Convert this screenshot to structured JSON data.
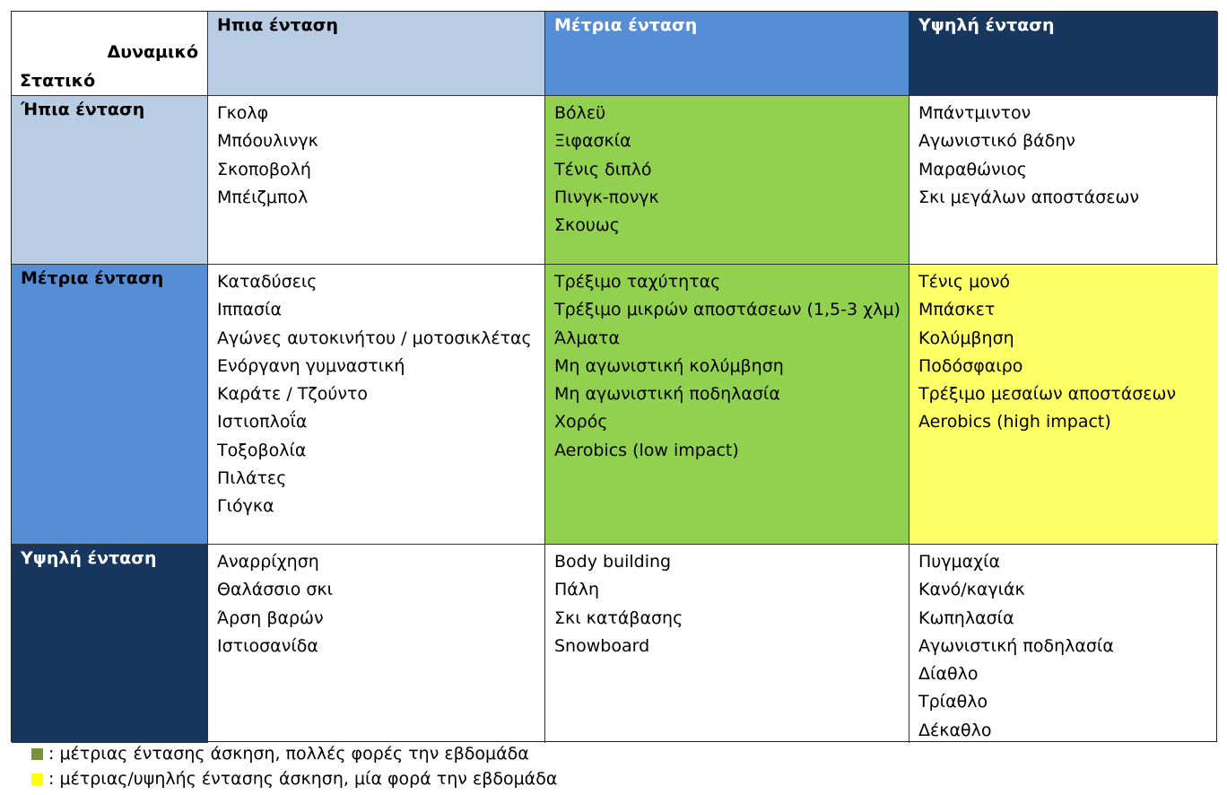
{
  "colors": {
    "light_blue": "#b8cce4",
    "mid_blue": "#558ed5",
    "dark_blue": "#17375e",
    "green": "#92d050",
    "yellow": "#ffff66",
    "legend_green": "#77933c",
    "legend_yellow": "#ffff00"
  },
  "table": {
    "corner_dynamic": "Δυναμικό",
    "corner_static": "Στατικό",
    "columns": [
      "Ηπια ένταση",
      "Μέτρια ένταση",
      "Υψηλή ένταση"
    ],
    "rows": [
      {
        "label": "Ήπια ένταση",
        "cells": [
          [
            "Γκολφ",
            "Μπόουλινγκ",
            "Σκοποβολή",
            "Μπέιζμπολ"
          ],
          [
            "Βόλεϋ",
            "Ξιφασκία",
            "Τένις διπλό",
            "Πινγκ-πονγκ",
            "Σκουως"
          ],
          [
            "Μπάντμιντον",
            "Αγωνιστικό βάδην",
            "Μαραθώνιος",
            "Σκι μεγάλων αποστάσεων"
          ]
        ]
      },
      {
        "label": "Μέτρια ένταση",
        "cells": [
          [
            "Καταδύσεις",
            "Ιππασία",
            "Αγώνες αυτοκινήτου / μοτοσικλέτας",
            "Ενόργανη γυμναστική",
            "Καράτε / Τζούντο",
            "Ιστιοπλοΐα",
            "Τοξοβολία",
            "Πιλάτες",
            "Γιόγκα"
          ],
          [
            "Τρέξιμο ταχύτητας",
            "Τρέξιμο μικρών αποστάσεων (1,5-3 χλμ)",
            "Άλματα",
            "Μη αγωνιστική κολύμβηση",
            "Μη αγωνιστική ποδηλασία",
            "Χορός",
            "Aerobics (low impact)"
          ],
          [
            "Τένις μονό",
            "Μπάσκετ",
            "Κολύμβηση",
            "Ποδόσφαιρο",
            "Τρέξιμο μεσαίων αποστάσεων",
            "Aerobics (high impact)"
          ]
        ]
      },
      {
        "label": "Υψηλή ένταση",
        "cells": [
          [
            "Αναρρίχηση",
            "Θαλάσσιο σκι",
            "Άρση βαρών",
            "Ιστιοσανίδα"
          ],
          [
            "Body building",
            "Πάλη",
            "Σκι κατάβασης",
            "Snowboard"
          ],
          [
            "Πυγμαχία",
            "Κανό/καγιάκ",
            "Κωπηλασία",
            "Αγωνιστική ποδηλασία",
            "Δίαθλο",
            "Τρίαθλο",
            "Δέκαθλο"
          ]
        ]
      }
    ]
  },
  "legend": [
    {
      "text": ": μέτριας έντασης άσκηση, πολλές φορές την εβδομάδα",
      "color": "#77933c"
    },
    {
      "text": ": μέτριας/υψηλής έντασης άσκηση, μία φορά την εβδομάδα",
      "color": "#ffff00"
    }
  ]
}
